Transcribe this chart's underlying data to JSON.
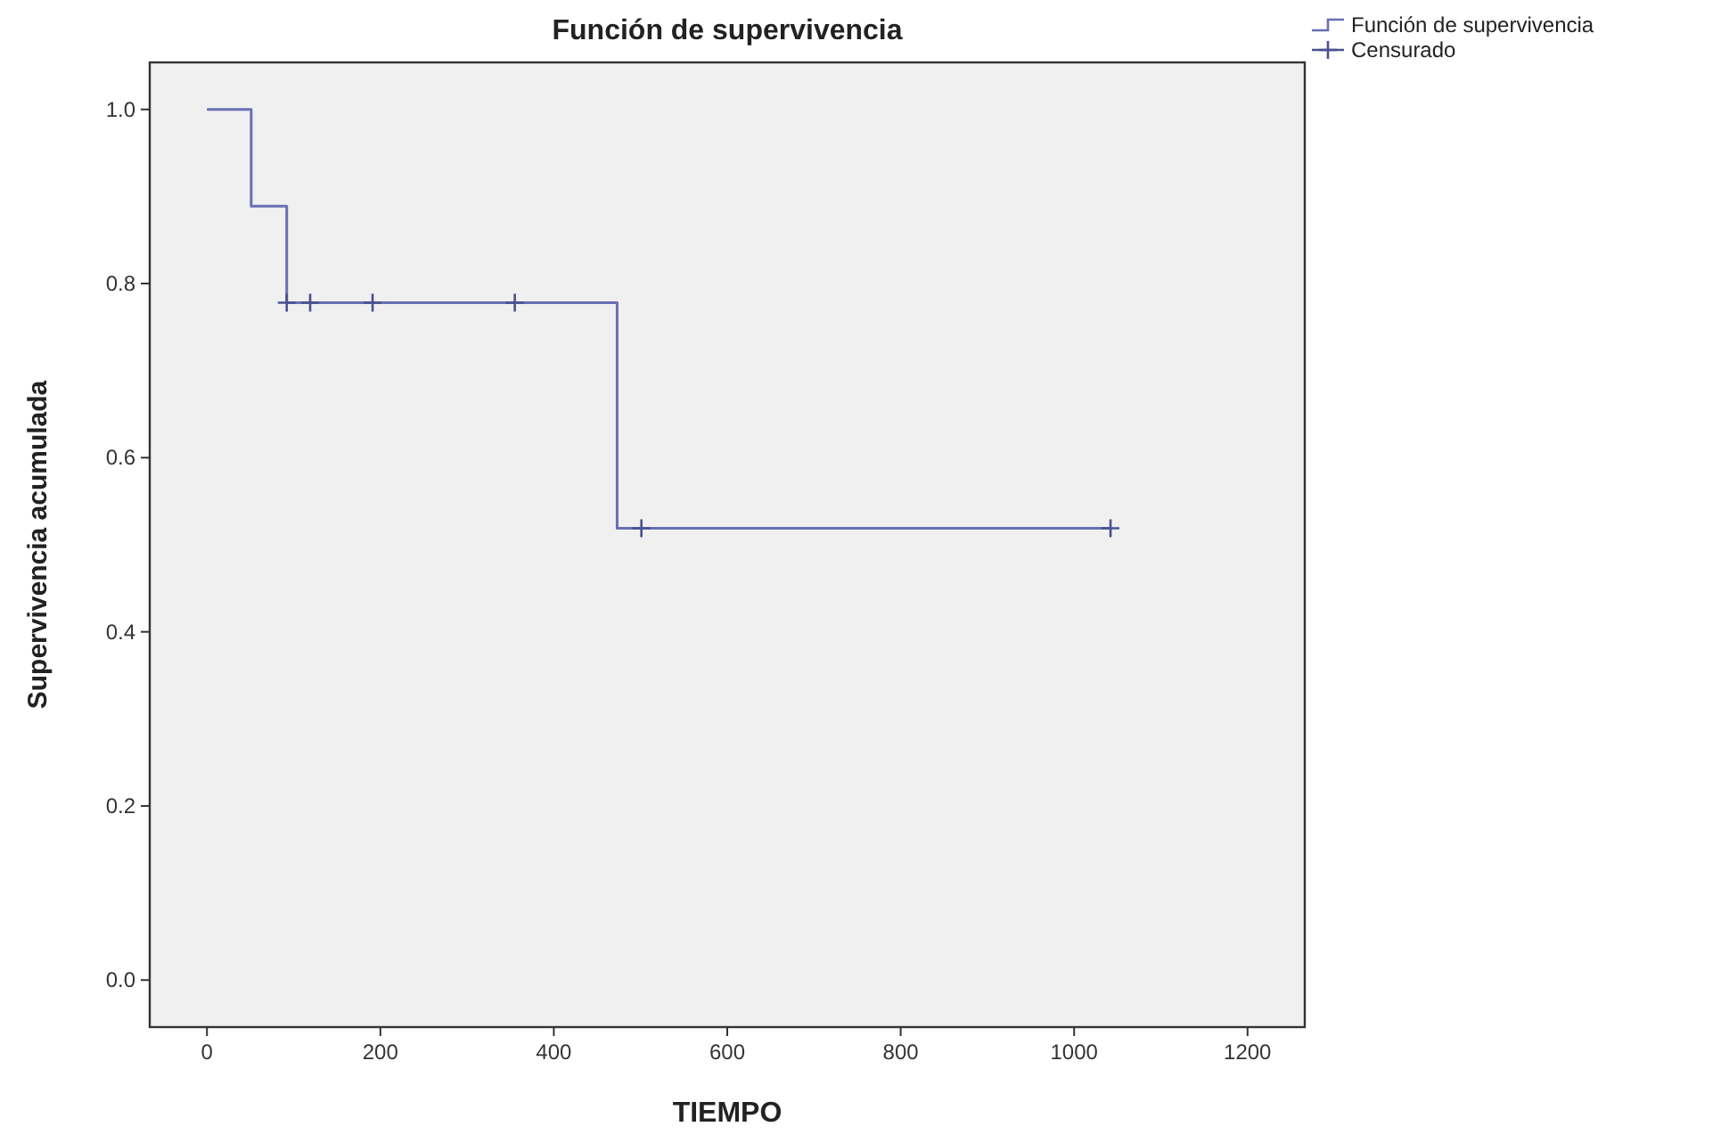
{
  "chart_data": {
    "type": "step",
    "title": "Función de supervivencia",
    "xlabel": "TIEMPO",
    "ylabel": "Supervivencia acumulada",
    "xlim": [
      -66,
      1266
    ],
    "xticks": [
      0,
      200,
      400,
      600,
      800,
      1000,
      1200
    ],
    "ylim": [
      -0.054,
      1.054
    ],
    "yticks": [
      {
        "value": 0,
        "label": "0.0"
      },
      {
        "value": 0.2,
        "label": "0.2"
      },
      {
        "value": 0.4,
        "label": "0.4"
      },
      {
        "value": 0.6,
        "label": "0.6"
      },
      {
        "value": 0.8,
        "label": "0.8"
      },
      {
        "value": 1,
        "label": "1.0"
      }
    ],
    "grid": false,
    "legend": "top right",
    "series": [
      {
        "name": "Función de supervivencia",
        "color": "#6670b4",
        "marker": "none",
        "x": [
          0,
          51,
          92,
          473,
          1042
        ],
        "values": [
          1,
          0.889,
          0.778,
          0.519,
          0.519
        ]
      },
      {
        "name": "Censurado",
        "type": "scatter",
        "color": "#4a5090",
        "marker": "cross",
        "x": [
          92,
          119,
          191,
          355,
          501,
          1042
        ],
        "values": [
          0.778,
          0.778,
          0.778,
          0.778,
          0.519,
          0.519
        ]
      }
    ]
  }
}
